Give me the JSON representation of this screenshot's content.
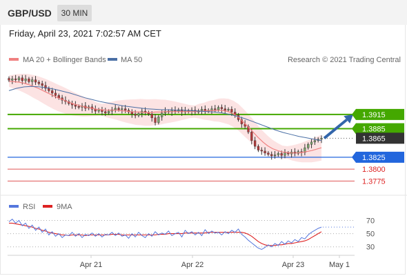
{
  "header": {
    "pair": "GBP/USD",
    "timeframe": "30 MIN",
    "date": "Friday, April 23, 2021 7:02:57 AM CET"
  },
  "legend": {
    "ma20": "MA 20 + Bollinger Bands",
    "ma50": "MA 50",
    "credit": "Research © 2021 Trading Central"
  },
  "rsi_legend": {
    "rsi": "RSI",
    "ma": "9MA"
  },
  "colors": {
    "ma20": "#f08080",
    "ma50": "#4a6fa5",
    "bollinger_fill": "#fbd9d9",
    "resistance": "#44a800",
    "pivot": "#2266dd",
    "support": "#e05555",
    "last_price": "#333333",
    "rsi": "#5577dd",
    "rsi_ma": "#dd2222",
    "arrow": "#3366aa"
  },
  "chart_data": [
    {
      "type": "candlestick",
      "title": "GBP/USD",
      "interval": "30 MIN",
      "ylim": [
        1.3745,
        1.4015
      ],
      "x_ticks": [
        "Apr 21",
        "Apr 22",
        "Apr 23",
        "May 1"
      ],
      "levels": [
        {
          "value": 1.3915,
          "label": "1.3915",
          "kind": "resistance"
        },
        {
          "value": 1.3885,
          "label": "1.3885",
          "kind": "resistance"
        },
        {
          "value": 1.3865,
          "label": "1.3865",
          "kind": "last"
        },
        {
          "value": 1.3825,
          "label": "1.3825",
          "kind": "pivot"
        },
        {
          "value": 1.38,
          "label": "1.3800",
          "kind": "support"
        },
        {
          "value": 1.3775,
          "label": "1.3775",
          "kind": "support"
        }
      ],
      "close": [
        1.3987,
        1.399,
        1.3988,
        1.3992,
        1.3986,
        1.399,
        1.3984,
        1.3988,
        1.3983,
        1.398,
        1.3976,
        1.397,
        1.3965,
        1.396,
        1.3955,
        1.395,
        1.3945,
        1.3942,
        1.3938,
        1.3935,
        1.3932,
        1.393,
        1.3933,
        1.3928,
        1.3931,
        1.3926,
        1.3922,
        1.3925,
        1.3921,
        1.3918,
        1.3922,
        1.3925,
        1.3928,
        1.3925,
        1.3927,
        1.3924,
        1.392,
        1.3916,
        1.3913,
        1.3917,
        1.3922,
        1.3919,
        1.3916,
        1.3908,
        1.3898,
        1.391,
        1.3918,
        1.3922,
        1.392,
        1.3924,
        1.3922,
        1.3925,
        1.392,
        1.3923,
        1.3921,
        1.3924,
        1.392,
        1.3923,
        1.3926,
        1.3922,
        1.3924,
        1.3927,
        1.3925,
        1.393,
        1.3927,
        1.3924,
        1.3926,
        1.392,
        1.3914,
        1.3904,
        1.3895,
        1.389,
        1.3878,
        1.386,
        1.3848,
        1.384,
        1.3838,
        1.3834,
        1.3831,
        1.3828,
        1.383,
        1.3833,
        1.3829,
        1.3834,
        1.3832,
        1.3836,
        1.3833,
        1.3837,
        1.3835,
        1.3845,
        1.3852,
        1.3857,
        1.386,
        1.3863,
        1.3865
      ],
      "ma20": [
        1.3985,
        1.3984,
        1.3983,
        1.3981,
        1.3978,
        1.3974,
        1.397,
        1.3965,
        1.396,
        1.3955,
        1.395,
        1.3946,
        1.3942,
        1.3938,
        1.3935,
        1.3932,
        1.393,
        1.3928,
        1.3926,
        1.3925,
        1.3924,
        1.3924,
        1.3924,
        1.3923,
        1.3922,
        1.3921,
        1.392,
        1.392,
        1.3919,
        1.3919,
        1.392,
        1.392,
        1.3921,
        1.3921,
        1.3921,
        1.3921,
        1.3921,
        1.3921,
        1.3921,
        1.3922,
        1.3922,
        1.3923,
        1.3923,
        1.3924,
        1.3923,
        1.3921,
        1.3916,
        1.3909,
        1.3899,
        1.3889,
        1.3878,
        1.3867,
        1.3857,
        1.3849,
        1.3843,
        1.3839,
        1.3836,
        1.3835,
        1.3834,
        1.3834,
        1.3835,
        1.3837,
        1.3839,
        1.3842,
        1.3845
      ],
      "ma50": [
        1.3965,
        1.397,
        1.3973,
        1.3974,
        1.3973,
        1.3971,
        1.3968,
        1.3964,
        1.396,
        1.3955,
        1.395,
        1.3946,
        1.3942,
        1.3939,
        1.3936,
        1.3933,
        1.3931,
        1.3929,
        1.3927,
        1.3926,
        1.3925,
        1.3925,
        1.3924,
        1.3924,
        1.3923,
        1.3922,
        1.3921,
        1.392,
        1.3918,
        1.3915,
        1.3911,
        1.3906,
        1.39,
        1.3894,
        1.3888,
        1.3882,
        1.3877,
        1.3873,
        1.3869,
        1.3866,
        1.3863,
        1.386
      ],
      "forecast_arrow": {
        "from": 1.3865,
        "to": 1.3915
      }
    },
    {
      "type": "line",
      "title": "RSI",
      "series": [
        {
          "name": "RSI"
        },
        {
          "name": "9MA"
        }
      ],
      "ylim": [
        15,
        80
      ],
      "y_ticks": [
        70,
        50,
        30
      ],
      "rsi": [
        68,
        72,
        66,
        70,
        62,
        66,
        58,
        63,
        55,
        60,
        52,
        57,
        48,
        53,
        46,
        50,
        44,
        48,
        47,
        52,
        46,
        50,
        44,
        49,
        47,
        51,
        46,
        50,
        45,
        49,
        48,
        52,
        47,
        51,
        46,
        48,
        43,
        50,
        45,
        52,
        47,
        44,
        50,
        46,
        53,
        48,
        51,
        49,
        54,
        47,
        50,
        52,
        45,
        55,
        50,
        53,
        48,
        52,
        47,
        56,
        50,
        54,
        51,
        52,
        48,
        53,
        50,
        55,
        52,
        57,
        49,
        45,
        40,
        36,
        32,
        28,
        26,
        29,
        33,
        30,
        35,
        32,
        38,
        34,
        39,
        36,
        41,
        38,
        44,
        42,
        48,
        52,
        55,
        58,
        60
      ],
      "rsi_ma": [
        66,
        66,
        65,
        64,
        63,
        62,
        61,
        60,
        58,
        57,
        55,
        54,
        52,
        51,
        50,
        49,
        48,
        48,
        47,
        48,
        48,
        48,
        48,
        47,
        48,
        48,
        48,
        48,
        48,
        48,
        48,
        49,
        49,
        49,
        48,
        48,
        48,
        48,
        48,
        48,
        48,
        48,
        48,
        48,
        48,
        49,
        49,
        49,
        50,
        50,
        50,
        50,
        50,
        51,
        51,
        51,
        51,
        51,
        51,
        51,
        52,
        52,
        52,
        52,
        52,
        52,
        52,
        52,
        52,
        52,
        52,
        51,
        49,
        46,
        42,
        38,
        35,
        33,
        32,
        32,
        32,
        33,
        33,
        34,
        35,
        35,
        36,
        37,
        38,
        39,
        41,
        44,
        47,
        50,
        53
      ]
    }
  ]
}
